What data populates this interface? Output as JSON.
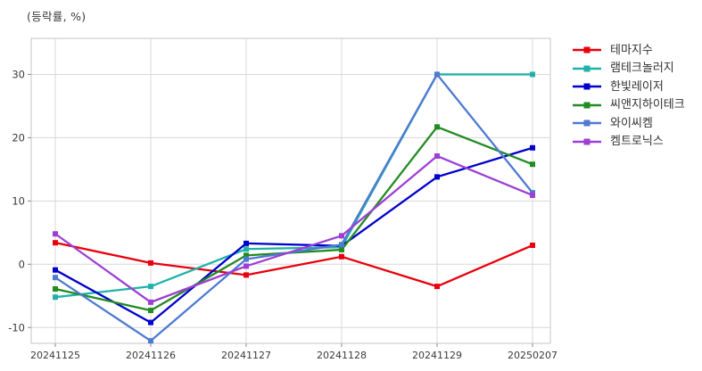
{
  "title": "(등락률, %)",
  "chart_data": {
    "type": "line",
    "title": "(등락률, %)",
    "categories": [
      "20241125",
      "20241126",
      "20241127",
      "20241128",
      "20241129",
      "20250207"
    ],
    "series": [
      {
        "name": "테마지수",
        "color": "#e8000d",
        "marker": "square",
        "values": [
          3.4,
          0.2,
          -1.7,
          1.2,
          -3.5,
          3.0
        ]
      },
      {
        "name": "램테크놀러지",
        "color": "#20b2aa",
        "marker": "square",
        "values": [
          -5.2,
          -3.5,
          2.4,
          2.7,
          30.0,
          30.0
        ]
      },
      {
        "name": "한빛레이저",
        "color": "#0000cd",
        "marker": "square",
        "values": [
          -0.9,
          -9.2,
          3.3,
          2.9,
          13.8,
          18.4
        ]
      },
      {
        "name": "씨앤지하이테크",
        "color": "#228b22",
        "marker": "square",
        "values": [
          -3.9,
          -7.3,
          1.4,
          2.3,
          21.7,
          15.8
        ]
      },
      {
        "name": "와이씨켐",
        "color": "#4f7ad1",
        "marker": "square",
        "values": [
          -2.1,
          -12.1,
          0.8,
          3.1,
          30.0,
          11.3
        ]
      },
      {
        "name": "켐트로닉스",
        "color": "#9d3fd3",
        "marker": "square",
        "values": [
          4.8,
          -6.0,
          -0.3,
          4.5,
          17.1,
          10.9
        ]
      }
    ],
    "xlabel": "",
    "ylabel": "등락률(%)",
    "ylim": [
      -12.5,
      35.7
    ],
    "yticks": [
      -10,
      0,
      10,
      20,
      30
    ],
    "grid": true,
    "legend_position": "right",
    "grid_color": "#d8d8d8",
    "frame_color": "#c4c4c4",
    "tick_color": "#8a8a8a",
    "tick_label_color": "#3a3a3a"
  }
}
